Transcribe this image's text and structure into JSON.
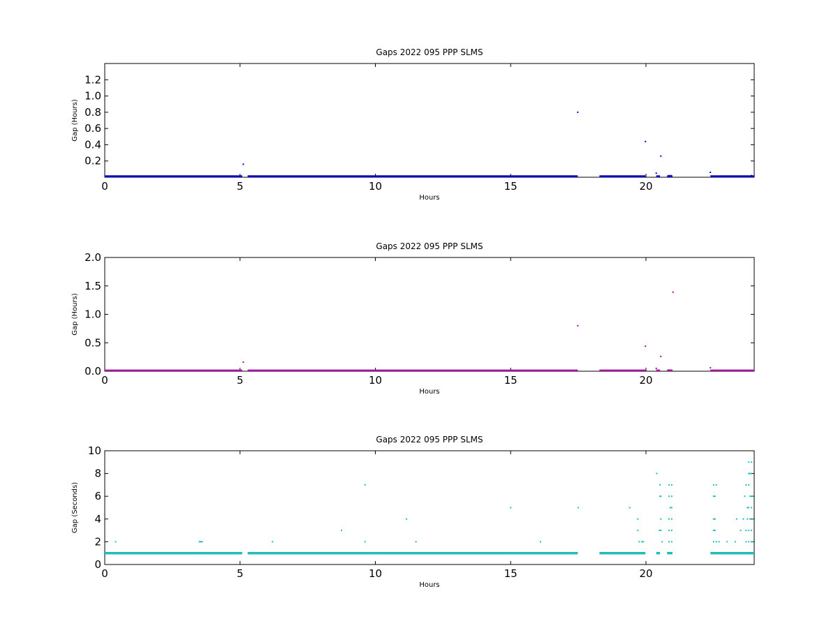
{
  "chart_data": [
    {
      "type": "scatter",
      "title": "Gaps 2022 095 PPP  SLMS",
      "xlabel": "Hours",
      "ylabel": "Gap (Hours)",
      "xlim": [
        0,
        24
      ],
      "ylim": [
        0,
        1.4
      ],
      "xticks": [
        0,
        5,
        10,
        15,
        20
      ],
      "yticks": [
        0.2,
        0.4,
        0.6,
        0.8,
        1.0,
        1.2
      ],
      "ytick_labels": [
        "0.2",
        "0.4",
        "0.6",
        "0.8",
        "1.0",
        "1.2"
      ],
      "color": "#0000cc",
      "series": [
        {
          "baseline_value": 0.0083,
          "baseline_ranges": [
            [
              0,
              5.08
            ],
            [
              5.28,
              17.48
            ],
            [
              18.28,
              19.98
            ],
            [
              20.38,
              20.52
            ],
            [
              20.78,
              20.98
            ],
            [
              22.38,
              24
            ]
          ],
          "points": [
            [
              5.12,
              0.16
            ],
            [
              17.48,
              0.8
            ],
            [
              19.98,
              0.44
            ],
            [
              20.38,
              0.05
            ],
            [
              20.55,
              0.26
            ],
            [
              22.38,
              0.06
            ],
            [
              20.85,
              0.02
            ],
            [
              20.92,
              0.02
            ],
            [
              23.9,
              0.02
            ]
          ]
        }
      ]
    },
    {
      "type": "scatter",
      "title": "Gaps 2022 095 PPP  SLMS",
      "xlabel": "Hours",
      "ylabel": "Gap (Hours)",
      "xlim": [
        0,
        24
      ],
      "ylim": [
        0,
        2.0
      ],
      "xticks": [
        0,
        5,
        10,
        15,
        20
      ],
      "yticks": [
        0.0,
        0.5,
        1.0,
        1.5,
        2.0
      ],
      "ytick_labels": [
        "0.0",
        "0.5",
        "1.0",
        "1.5",
        "2.0"
      ],
      "color": "#aa00aa",
      "series": [
        {
          "baseline_value": 0.0083,
          "baseline_ranges": [
            [
              0,
              5.08
            ],
            [
              5.28,
              17.48
            ],
            [
              18.28,
              19.98
            ],
            [
              20.38,
              20.52
            ],
            [
              20.78,
              20.98
            ],
            [
              22.38,
              24
            ]
          ],
          "points": [
            [
              5.12,
              0.16
            ],
            [
              17.48,
              0.8
            ],
            [
              19.98,
              0.44
            ],
            [
              20.38,
              0.05
            ],
            [
              20.55,
              0.26
            ],
            [
              21.0,
              1.39
            ],
            [
              22.38,
              0.06
            ],
            [
              20.88,
              0.02
            ]
          ]
        }
      ]
    },
    {
      "type": "scatter",
      "title": "Gaps 2022 095 PPP  SLMS",
      "xlabel": "Hours",
      "ylabel": "Gap (Seconds)",
      "xlim": [
        0,
        24
      ],
      "ylim": [
        0,
        10
      ],
      "xticks": [
        0,
        5,
        10,
        15,
        20
      ],
      "yticks": [
        0,
        2,
        4,
        6,
        8,
        10
      ],
      "ytick_labels": [
        "0",
        "2",
        "4",
        "6",
        "8",
        "10"
      ],
      "color": "#22bbbb",
      "series": [
        {
          "baseline_value": 1,
          "baseline_ranges": [
            [
              0,
              5.08
            ],
            [
              5.28,
              17.48
            ],
            [
              18.28,
              19.98
            ],
            [
              20.38,
              20.52
            ],
            [
              20.78,
              20.98
            ],
            [
              22.38,
              24
            ]
          ],
          "points": [
            [
              0.4,
              2
            ],
            [
              3.5,
              2
            ],
            [
              3.55,
              2
            ],
            [
              3.6,
              2
            ],
            [
              6.2,
              2
            ],
            [
              8.75,
              3
            ],
            [
              9.62,
              7
            ],
            [
              9.62,
              2
            ],
            [
              11.15,
              4
            ],
            [
              11.5,
              2
            ],
            [
              15.0,
              5
            ],
            [
              16.1,
              2
            ],
            [
              17.5,
              5
            ],
            [
              19.4,
              5
            ],
            [
              19.7,
              4
            ],
            [
              19.7,
              3
            ],
            [
              19.75,
              2
            ],
            [
              19.85,
              2
            ],
            [
              19.9,
              2
            ],
            [
              20.4,
              8
            ],
            [
              20.52,
              7
            ],
            [
              20.52,
              6
            ],
            [
              20.55,
              6
            ],
            [
              20.5,
              3
            ],
            [
              20.55,
              3
            ],
            [
              20.55,
              4
            ],
            [
              20.6,
              2
            ],
            [
              20.85,
              7
            ],
            [
              20.95,
              7
            ],
            [
              20.85,
              6
            ],
            [
              20.95,
              6
            ],
            [
              20.9,
              5
            ],
            [
              20.95,
              5
            ],
            [
              20.85,
              4
            ],
            [
              20.95,
              4
            ],
            [
              20.85,
              3
            ],
            [
              20.95,
              3
            ],
            [
              20.85,
              2
            ],
            [
              20.95,
              2
            ],
            [
              20.9,
              1
            ],
            [
              22.5,
              7
            ],
            [
              22.6,
              7
            ],
            [
              22.5,
              6
            ],
            [
              22.55,
              6
            ],
            [
              22.5,
              4
            ],
            [
              22.55,
              4
            ],
            [
              22.5,
              3
            ],
            [
              22.55,
              3
            ],
            [
              22.5,
              2
            ],
            [
              22.6,
              2
            ],
            [
              22.7,
              2
            ],
            [
              23.0,
              2
            ],
            [
              23.3,
              2
            ],
            [
              23.35,
              4
            ],
            [
              23.5,
              3
            ],
            [
              23.6,
              4
            ],
            [
              23.65,
              6
            ],
            [
              23.7,
              7
            ],
            [
              23.75,
              5
            ],
            [
              23.8,
              9
            ],
            [
              23.9,
              9
            ],
            [
              23.8,
              8
            ],
            [
              23.85,
              8
            ],
            [
              23.9,
              8
            ],
            [
              23.8,
              7
            ],
            [
              23.85,
              6
            ],
            [
              23.9,
              6
            ],
            [
              23.95,
              6
            ],
            [
              23.8,
              5
            ],
            [
              23.9,
              5
            ],
            [
              23.75,
              4
            ],
            [
              23.85,
              4
            ],
            [
              23.95,
              4
            ],
            [
              23.7,
              3
            ],
            [
              23.8,
              3
            ],
            [
              23.9,
              3
            ],
            [
              23.7,
              2
            ],
            [
              23.8,
              2
            ],
            [
              23.9,
              2
            ],
            [
              23.95,
              2
            ]
          ]
        }
      ]
    }
  ]
}
